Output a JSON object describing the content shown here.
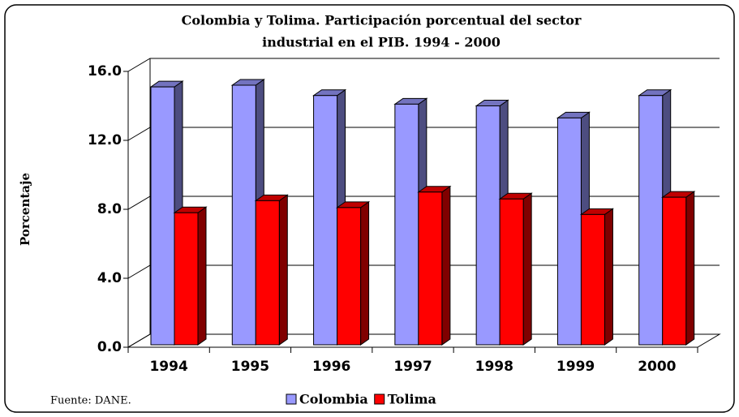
{
  "chart_data": {
    "type": "bar3d",
    "title": "Colombia y Tolima. Participación porcentual del sector",
    "subtitle": "industrial en el PIB. 1994 - 2000",
    "y_label": "Porcentaje",
    "source": "Fuente: DANE.",
    "categories": [
      "1994",
      "1995",
      "1996",
      "1997",
      "1998",
      "1999",
      "2000"
    ],
    "series": [
      {
        "name": "Colombia",
        "color": "#9999ff",
        "values": [
          15.1,
          15.2,
          14.6,
          14.1,
          14.0,
          13.3,
          14.6
        ]
      },
      {
        "name": "Tolima",
        "color": "#ff0000",
        "values": [
          7.8,
          8.5,
          8.1,
          9.0,
          8.6,
          7.7,
          8.7
        ]
      }
    ],
    "ylim": [
      0,
      16
    ],
    "yticks": [
      {
        "value": 0,
        "label": "0.0"
      },
      {
        "value": 4,
        "label": "4.0"
      },
      {
        "value": 8,
        "label": "8.0"
      },
      {
        "value": 12,
        "label": "12.0"
      },
      {
        "value": 16,
        "label": "16.0"
      }
    ],
    "grid": true
  }
}
